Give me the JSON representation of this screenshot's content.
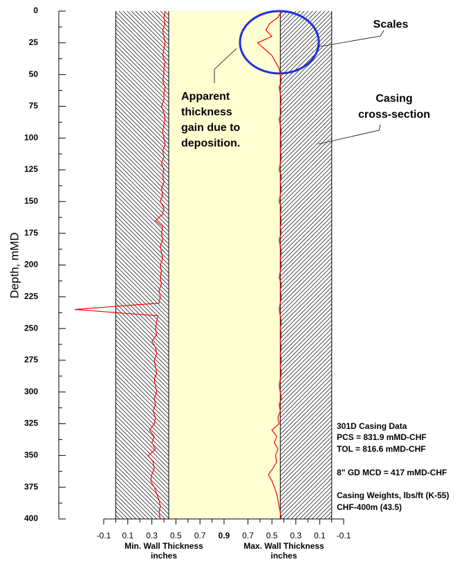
{
  "chart_data": {
    "type": "well-log",
    "ylabel": "Depth, mMD",
    "ylim": [
      0,
      400
    ],
    "yticks": [
      0,
      25,
      50,
      75,
      100,
      125,
      150,
      175,
      200,
      225,
      250,
      275,
      300,
      325,
      350,
      375,
      400
    ],
    "depth": [
      0,
      5,
      10,
      15,
      20,
      25,
      30,
      35,
      40,
      45,
      50,
      55,
      60,
      65,
      70,
      75,
      80,
      85,
      90,
      95,
      100,
      105,
      110,
      115,
      120,
      125,
      130,
      135,
      140,
      145,
      150,
      155,
      160,
      165,
      170,
      175,
      180,
      185,
      190,
      195,
      200,
      205,
      210,
      215,
      220,
      225,
      230,
      235,
      240,
      245,
      250,
      255,
      260,
      265,
      270,
      275,
      280,
      285,
      290,
      295,
      300,
      305,
      310,
      315,
      320,
      325,
      330,
      335,
      340,
      345,
      350,
      355,
      360,
      365,
      370,
      375,
      380,
      385,
      390,
      395,
      400
    ],
    "tracks": [
      {
        "xlabel": "Min. Wall Thickness",
        "xunit": "inches",
        "xlim": [
          -0.1,
          0.9
        ],
        "xticks": [
          -0.1,
          0.1,
          0.3,
          0.5,
          0.7,
          0.9
        ],
        "wall": 0.44,
        "edge": 0,
        "color": "#ff0000",
        "values": [
          0.41,
          0.4,
          0.41,
          0.39,
          0.4,
          0.41,
          0.4,
          0.39,
          0.41,
          0.4,
          0.4,
          0.39,
          0.41,
          0.4,
          0.4,
          0.38,
          0.4,
          0.41,
          0.4,
          0.39,
          0.4,
          0.41,
          0.39,
          0.4,
          0.38,
          0.4,
          0.39,
          0.4,
          0.38,
          0.39,
          0.37,
          0.4,
          0.39,
          0.33,
          0.39,
          0.38,
          0.39,
          0.37,
          0.38,
          0.39,
          0.37,
          0.38,
          0.37,
          0.38,
          0.36,
          0.37,
          0.36,
          -0.34,
          0.35,
          0.34,
          0.33,
          0.34,
          0.3,
          0.33,
          0.34,
          0.32,
          0.33,
          0.34,
          0.32,
          0.33,
          0.34,
          0.32,
          0.33,
          0.31,
          0.33,
          0.32,
          0.28,
          0.32,
          0.3,
          0.33,
          0.27,
          0.31,
          0.32,
          0.3,
          0.29,
          0.32,
          0.34,
          0.36,
          0.37,
          0.36,
          0.37
        ]
      },
      {
        "xlabel": "Max. Wall Thickness",
        "xunit": "inches",
        "xlim": [
          0.9,
          -0.1
        ],
        "xticks": [
          0.7,
          0.5,
          0.3,
          0.1,
          -0.1
        ],
        "wall": 0.43,
        "edge": 0,
        "color": "#ff0000",
        "values": [
          0.42,
          0.45,
          0.52,
          0.55,
          0.5,
          0.62,
          0.56,
          0.5,
          0.47,
          0.44,
          0.43,
          0.42,
          0.44,
          0.43,
          0.42,
          0.43,
          0.42,
          0.44,
          0.43,
          0.42,
          0.43,
          0.42,
          0.43,
          0.42,
          0.43,
          0.44,
          0.42,
          0.43,
          0.42,
          0.43,
          0.44,
          0.42,
          0.43,
          0.42,
          0.43,
          0.42,
          0.44,
          0.43,
          0.42,
          0.43,
          0.42,
          0.43,
          0.44,
          0.42,
          0.43,
          0.42,
          0.43,
          0.44,
          0.43,
          0.42,
          0.43,
          0.42,
          0.43,
          0.42,
          0.43,
          0.42,
          0.43,
          0.42,
          0.43,
          0.44,
          0.43,
          0.42,
          0.44,
          0.43,
          0.45,
          0.44,
          0.5,
          0.46,
          0.48,
          0.45,
          0.47,
          0.46,
          0.49,
          0.53,
          0.5,
          0.48,
          0.46,
          0.45,
          0.44,
          0.43,
          0.42
        ]
      }
    ],
    "annotations": {
      "scales": "Scales",
      "casing": [
        "Casing",
        "cross-section"
      ],
      "deposition": [
        "Apparent",
        "thickness",
        "gain due to",
        "deposition."
      ],
      "info": [
        "301D Casing Data",
        "PCS = 831.9 mMD-CHF",
        "TOL = 816.6 mMD-CHF",
        "8\" GD MCD = 417 mMD-CHF",
        "Casing Weights, lbs/ft (K-55)",
        "CHF-400m   (43.5)"
      ]
    }
  }
}
